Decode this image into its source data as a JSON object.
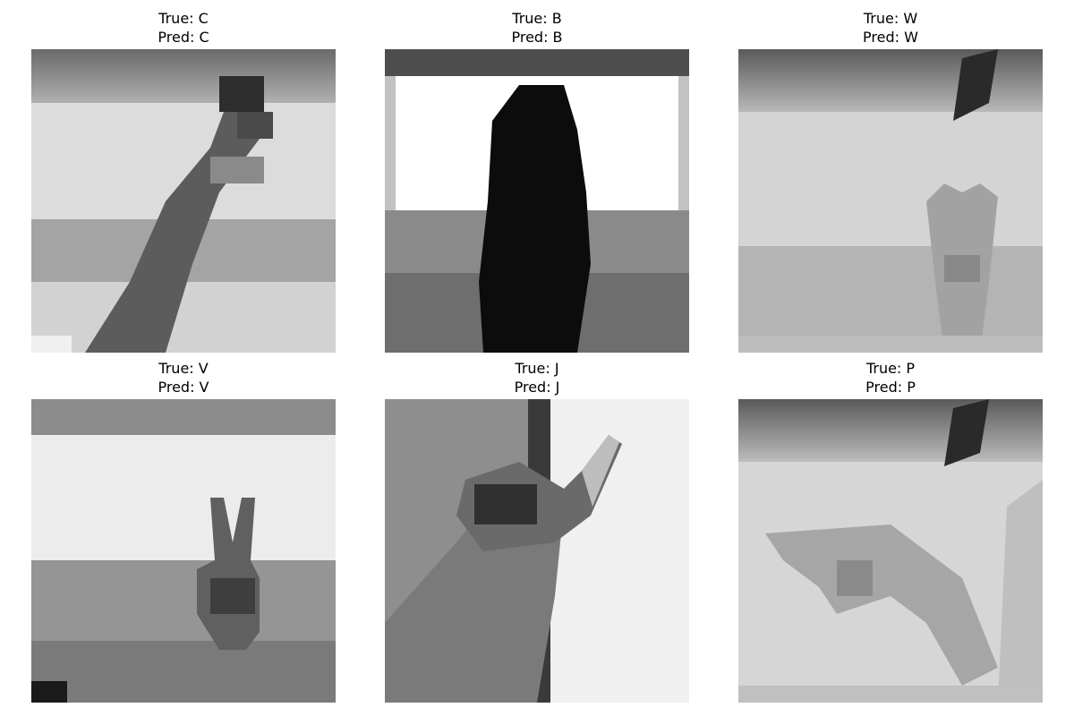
{
  "figure": {
    "panels": [
      {
        "true_label": "True: C",
        "pred_label": "Pred: C",
        "image_description_icon": "hand-sign-c-image"
      },
      {
        "true_label": "True: B",
        "pred_label": "Pred: B",
        "image_description_icon": "hand-sign-b-image"
      },
      {
        "true_label": "True: W",
        "pred_label": "Pred: W",
        "image_description_icon": "hand-sign-w-image"
      },
      {
        "true_label": "True: V",
        "pred_label": "Pred: V",
        "image_description_icon": "hand-sign-v-image"
      },
      {
        "true_label": "True: J",
        "pred_label": "Pred: J",
        "image_description_icon": "hand-sign-j-image"
      },
      {
        "true_label": "True: P",
        "pred_label": "Pred: P",
        "image_description_icon": "hand-sign-p-image"
      }
    ]
  }
}
